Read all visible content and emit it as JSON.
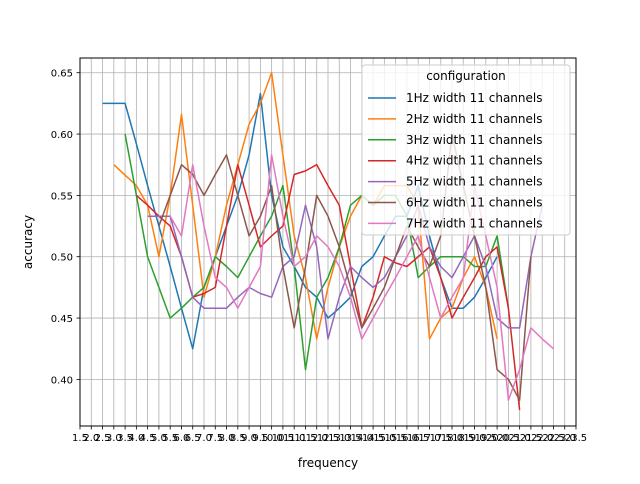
{
  "chart_data": {
    "type": "line",
    "xlabel": "frequency",
    "ylabel": "accuracy",
    "xlim": [
      1.5,
      23.5
    ],
    "ylim": [
      0.362,
      0.662
    ],
    "grid": true,
    "x_ticks": [
      1.5,
      2.0,
      2.5,
      3.0,
      3.5,
      4.0,
      4.5,
      5.0,
      5.5,
      6.0,
      6.5,
      7.0,
      7.5,
      8.0,
      8.5,
      9.0,
      9.5,
      10.0,
      10.5,
      11.0,
      11.5,
      12.0,
      12.5,
      13.0,
      13.5,
      14.0,
      14.5,
      15.0,
      15.5,
      16.0,
      16.5,
      17.0,
      17.5,
      18.0,
      18.5,
      19.0,
      19.5,
      20.0,
      20.5,
      21.0,
      21.5,
      22.0,
      22.5,
      23.0,
      23.5
    ],
    "x_tick_labels": [
      "1.5",
      "2.0",
      "2.5",
      "3.0",
      "3.5",
      "4.0",
      "4.5",
      "5.0",
      "5.5",
      "6.0",
      "6.5",
      "7.0",
      "7.5",
      "8.0",
      "8.5",
      "9.0",
      "9.5",
      "10.0",
      "10.5",
      "11.0",
      "11.5",
      "12.0",
      "12.5",
      "13.0",
      "13.5",
      "14.0",
      "14.5",
      "15.0",
      "15.5",
      "16.0",
      "16.5",
      "17.0",
      "17.5",
      "18.0",
      "18.5",
      "19.0",
      "19.5",
      "20.0",
      "20.5",
      "21.0",
      "21.5",
      "22.0",
      "22.5",
      "23.0",
      "23.5"
    ],
    "y_ticks": [
      0.4,
      0.45,
      0.5,
      0.55,
      0.6,
      0.65
    ],
    "y_tick_labels": [
      "0.40",
      "0.45",
      "0.50",
      "0.55",
      "0.60",
      "0.65"
    ],
    "legend": {
      "title": "configuration",
      "position": "top-right"
    },
    "series": [
      {
        "name": "1Hz width 11 channels",
        "color": "#1f77b4",
        "x": [
          2.5,
          3.5,
          4.0,
          4.5,
          5.0,
          5.5,
          6.0,
          6.5,
          7.0,
          7.5,
          8.0,
          8.5,
          9.0,
          9.5,
          10.0,
          10.5,
          11.0,
          11.5,
          12.0,
          12.5,
          13.0,
          13.5,
          14.0,
          14.5,
          15.0,
          15.5,
          16.0,
          16.5,
          17.0,
          17.5,
          18.0,
          18.5,
          19.0,
          19.5,
          20.0
        ],
        "y": [
          0.625,
          0.625,
          0.592,
          0.558,
          0.525,
          0.492,
          0.458,
          0.425,
          0.475,
          0.5,
          0.525,
          0.55,
          0.583,
          0.633,
          0.55,
          0.508,
          0.492,
          0.475,
          0.467,
          0.45,
          0.458,
          0.467,
          0.492,
          0.5,
          0.517,
          0.533,
          0.533,
          0.558,
          0.517,
          0.483,
          0.458,
          0.458,
          0.467,
          0.483,
          0.5
        ]
      },
      {
        "name": "2Hz width 11 channels",
        "color": "#ff7f0e",
        "x": [
          3.0,
          4.0,
          4.5,
          5.0,
          5.5,
          6.0,
          6.5,
          7.0,
          7.5,
          8.0,
          8.5,
          9.0,
          9.5,
          10.0,
          10.5,
          11.0,
          11.5,
          12.0,
          12.5,
          13.0,
          13.5,
          14.0,
          14.5,
          15.0,
          15.5,
          16.0,
          16.5,
          17.0,
          17.5,
          18.0,
          18.5,
          19.0,
          19.5,
          20.0
        ],
        "y": [
          0.575,
          0.558,
          0.542,
          0.5,
          0.55,
          0.616,
          0.542,
          0.467,
          0.5,
          0.542,
          0.575,
          0.608,
          0.625,
          0.65,
          0.583,
          0.517,
          0.483,
          0.433,
          0.475,
          0.508,
          0.533,
          0.55,
          0.542,
          0.558,
          0.558,
          0.558,
          0.542,
          0.433,
          0.45,
          0.458,
          0.483,
          0.5,
          0.475,
          0.433
        ]
      },
      {
        "name": "3Hz width 11 channels",
        "color": "#2ca02c",
        "x": [
          3.5,
          4.0,
          4.5,
          5.0,
          5.5,
          6.0,
          6.5,
          7.0,
          7.5,
          8.0,
          8.5,
          9.0,
          9.5,
          10.0,
          10.5,
          11.0,
          11.5,
          12.0,
          12.5,
          13.0,
          13.5,
          14.0,
          14.5,
          15.0,
          15.5,
          16.0,
          16.5,
          17.0,
          17.5,
          18.0,
          18.5,
          19.0,
          19.5,
          20.0,
          20.5
        ],
        "y": [
          0.6,
          0.55,
          0.5,
          0.475,
          0.45,
          0.458,
          0.467,
          0.475,
          0.5,
          0.492,
          0.483,
          0.5,
          0.517,
          0.533,
          0.558,
          0.492,
          0.408,
          0.467,
          0.483,
          0.508,
          0.542,
          0.55,
          0.542,
          0.55,
          0.55,
          0.533,
          0.483,
          0.492,
          0.5,
          0.5,
          0.5,
          0.492,
          0.492,
          0.517,
          0.458
        ]
      },
      {
        "name": "4Hz width 11 channels",
        "color": "#d62728",
        "x": [
          4.0,
          4.5,
          5.0,
          5.5,
          6.0,
          6.5,
          7.0,
          7.5,
          8.0,
          8.5,
          9.0,
          9.5,
          10.0,
          10.5,
          11.0,
          11.5,
          12.0,
          12.5,
          13.0,
          13.5,
          14.0,
          14.5,
          15.0,
          15.5,
          16.0,
          16.5,
          17.0,
          17.5,
          18.0,
          18.5,
          19.0,
          19.5,
          20.0,
          20.5,
          21.0
        ],
        "y": [
          0.55,
          0.542,
          0.533,
          0.525,
          0.5,
          0.467,
          0.47,
          0.475,
          0.525,
          0.575,
          0.542,
          0.508,
          0.517,
          0.525,
          0.567,
          0.57,
          0.575,
          0.558,
          0.542,
          0.492,
          0.442,
          0.467,
          0.5,
          0.495,
          0.492,
          0.5,
          0.508,
          0.483,
          0.45,
          0.467,
          0.483,
          0.5,
          0.508,
          0.458,
          0.375
        ]
      },
      {
        "name": "5Hz width 11 channels",
        "color": "#9467bd",
        "x": [
          4.5,
          5.0,
          5.5,
          6.0,
          6.5,
          7.0,
          7.5,
          8.0,
          8.5,
          9.0,
          9.5,
          10.0,
          10.5,
          11.0,
          11.5,
          12.0,
          12.5,
          13.0,
          13.5,
          14.0,
          14.5,
          15.0,
          15.5,
          16.0,
          16.5,
          17.0,
          17.5,
          18.0,
          18.5,
          19.0,
          19.5,
          20.0,
          20.5,
          21.0,
          21.5,
          22.0
        ],
        "y": [
          0.533,
          0.533,
          0.533,
          0.5,
          0.467,
          0.458,
          0.458,
          0.458,
          0.467,
          0.475,
          0.47,
          0.467,
          0.492,
          0.5,
          0.542,
          0.508,
          0.433,
          0.467,
          0.492,
          0.483,
          0.475,
          0.483,
          0.5,
          0.517,
          0.542,
          0.508,
          0.492,
          0.483,
          0.5,
          0.517,
          0.492,
          0.45,
          0.442,
          0.442,
          0.5,
          0.542
        ]
      },
      {
        "name": "6Hz width 11 channels",
        "color": "#8c564b",
        "x": [
          5.0,
          5.5,
          6.0,
          6.5,
          7.0,
          7.5,
          8.0,
          8.5,
          9.0,
          9.5,
          10.0,
          10.5,
          11.0,
          11.5,
          12.0,
          12.5,
          13.0,
          13.5,
          14.0,
          14.5,
          15.0,
          15.5,
          16.0,
          16.5,
          17.0,
          17.5,
          18.0,
          18.5,
          19.0,
          19.5,
          20.0,
          20.5,
          21.0,
          21.5
        ],
        "y": [
          0.525,
          0.55,
          0.575,
          0.567,
          0.55,
          0.567,
          0.583,
          0.55,
          0.517,
          0.533,
          0.558,
          0.492,
          0.442,
          0.492,
          0.55,
          0.533,
          0.508,
          0.475,
          0.442,
          0.458,
          0.475,
          0.5,
          0.525,
          0.508,
          0.492,
          0.517,
          0.6,
          0.558,
          0.517,
          0.475,
          0.408,
          0.4,
          0.383,
          0.5
        ]
      },
      {
        "name": "7Hz width 11 channels",
        "color": "#e377c2",
        "x": [
          5.5,
          6.0,
          6.5,
          7.0,
          7.5,
          8.0,
          8.5,
          9.0,
          9.5,
          10.0,
          10.5,
          11.0,
          11.5,
          12.0,
          12.5,
          13.0,
          13.5,
          14.0,
          14.5,
          15.0,
          15.5,
          16.0,
          16.5,
          17.0,
          17.5,
          18.0,
          18.5,
          19.0,
          19.5,
          20.0,
          20.5,
          21.0,
          21.5,
          22.0,
          22.5
        ],
        "y": [
          0.533,
          0.517,
          0.575,
          0.525,
          0.483,
          0.475,
          0.458,
          0.475,
          0.492,
          0.583,
          0.533,
          0.492,
          0.5,
          0.517,
          0.508,
          0.492,
          0.467,
          0.433,
          0.45,
          0.467,
          0.483,
          0.5,
          0.517,
          0.483,
          0.45,
          0.467,
          0.483,
          0.558,
          0.517,
          0.475,
          0.383,
          0.408,
          0.442,
          0.433,
          0.425
        ]
      }
    ]
  }
}
